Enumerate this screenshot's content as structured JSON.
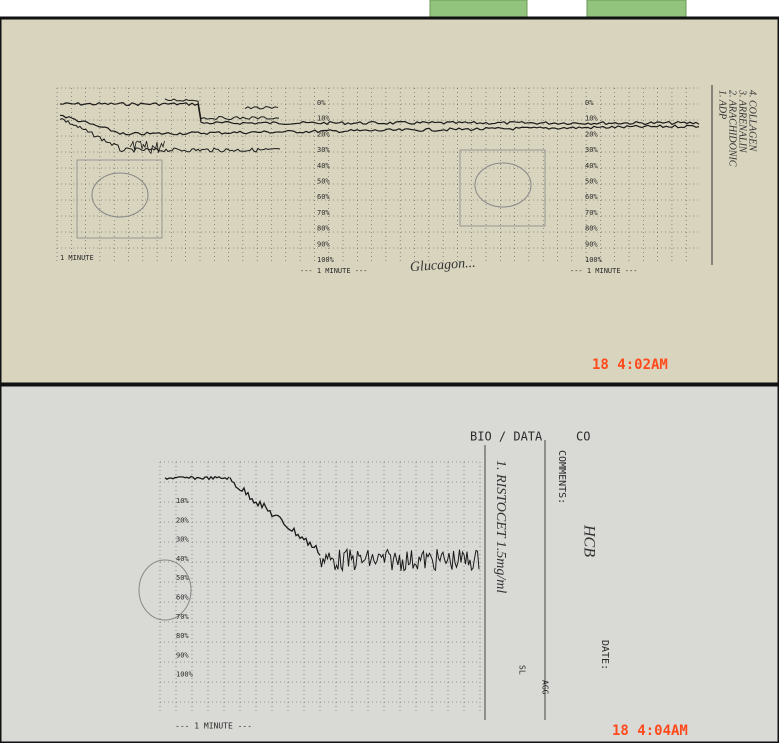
{
  "top_photo": {
    "legend": [
      "1. ADP",
      "2. ARACHIDONIC",
      "3. ARRENALIN",
      "4. COLLAGEN"
    ],
    "percent_labels": [
      "0%",
      "10%",
      "20%",
      "30%",
      "40%",
      "50%",
      "60%",
      "70%",
      "80%",
      "90%",
      "100%"
    ],
    "minute_labels": [
      "1 MINUTE",
      "--- 1 MINUTE ---",
      "--- 1 MINUTE ---"
    ],
    "handwriting": "Glucagon...",
    "timestamp": "18   4:02AM"
  },
  "bottom_photo": {
    "header": "BIO / DATA",
    "header_cut": "CO",
    "comments_label": "COMMENTS:",
    "comments_value": "HCB",
    "agonist": "1. RISTOCET 1.5mg/ml",
    "date_label": "DATE:",
    "percent_labels": [
      "10%",
      "20%",
      "30%",
      "40%",
      "50%",
      "60%",
      "70%",
      "80%",
      "90%",
      "100%"
    ],
    "minute_label": "--- 1 MINUTE ---",
    "small_labels": [
      "SL",
      "AGG"
    ],
    "timestamp": "18   4:04AM"
  }
}
